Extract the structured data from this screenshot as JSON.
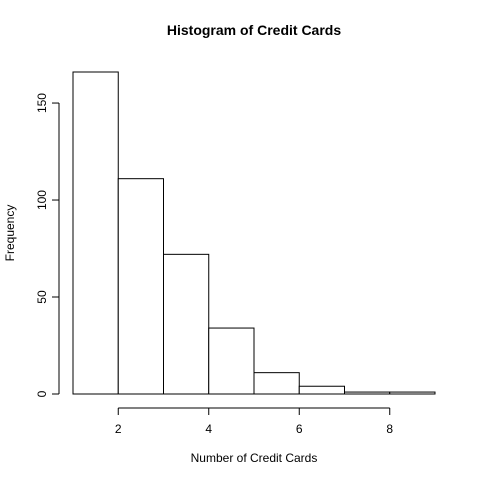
{
  "chart_data": {
    "type": "bar",
    "title": "Histogram of Credit Cards",
    "xlabel": "Number of Credit Cards",
    "ylabel": "Frequency",
    "bins": [
      {
        "start": 1,
        "end": 2,
        "count": 166
      },
      {
        "start": 2,
        "end": 3,
        "count": 111
      },
      {
        "start": 3,
        "end": 4,
        "count": 72
      },
      {
        "start": 4,
        "end": 5,
        "count": 34
      },
      {
        "start": 5,
        "end": 6,
        "count": 11
      },
      {
        "start": 6,
        "end": 7,
        "count": 4
      },
      {
        "start": 7,
        "end": 8,
        "count": 1
      },
      {
        "start": 8,
        "end": 9,
        "count": 1
      }
    ],
    "xlim": [
      1,
      9
    ],
    "ylim": [
      0,
      166
    ],
    "xticks": [
      2,
      4,
      6,
      8
    ],
    "yticks": [
      0,
      50,
      100,
      150
    ],
    "grid": false
  }
}
